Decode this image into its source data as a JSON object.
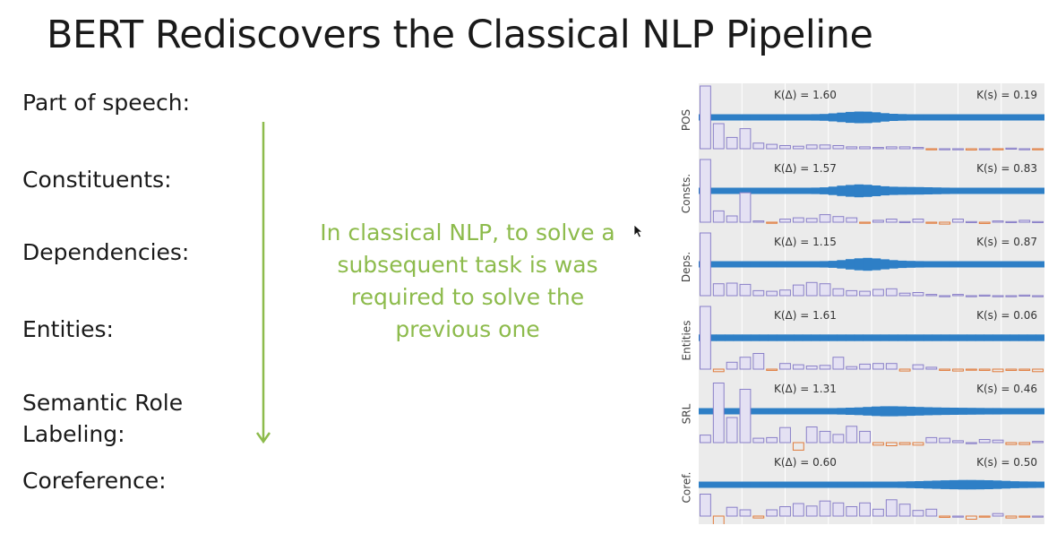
{
  "title": "BERT Rediscovers the Classical NLP Pipeline",
  "tasks": [
    "Part of speech:",
    "Constituents:",
    "Dependencies:",
    "Entities:",
    "Semantic Role\nLabeling:",
    "Coreference:"
  ],
  "note": "In classical NLP, to solve a subsequent task is was required to solve the previous one",
  "colors": {
    "arrow": "#8dbb4c",
    "note_text": "#8dbb4c",
    "band": "#2e7fc6",
    "bar_positive_fill": "#e4e1f3",
    "bar_positive_stroke": "#8a80c8",
    "bar_negative_stroke": "#e07a3a",
    "panel_background": "#ebebeb"
  },
  "icons": [
    "down-arrow-icon",
    "mouse-cursor-icon"
  ],
  "panels": [
    {
      "label": "POS",
      "k_delta": "K(Δ) = 1.60",
      "k_s": "K(s) = 0.19",
      "band": [
        0.5,
        0.5,
        0.5,
        0.5,
        0.5,
        0.5,
        0.5,
        0.5,
        0.5,
        0.5,
        0.5,
        0.5,
        0.5,
        0.6,
        0.8,
        1.5,
        2.3,
        3.1,
        3.5,
        3.4,
        2.7,
        1.7,
        1.0,
        0.7,
        0.5,
        0.5,
        0.5,
        0.5,
        0.5,
        0.5,
        0.5,
        0.5,
        0.5,
        0.5,
        0.5,
        0.5,
        0.5,
        0.5,
        0.5,
        0.5
      ],
      "bars": [
        100,
        40,
        18,
        32,
        9,
        7,
        5,
        4,
        6,
        6,
        5,
        3,
        3,
        2,
        3,
        3,
        2,
        -1,
        0,
        0,
        -2,
        0,
        -1,
        1,
        0,
        -1
      ]
    },
    {
      "label": "Consts.",
      "k_delta": "K(Δ) = 1.57",
      "k_s": "K(s) = 0.83",
      "band": [
        0.5,
        0.5,
        0.5,
        0.5,
        0.5,
        0.5,
        0.5,
        0.5,
        0.5,
        0.5,
        0.5,
        0.5,
        0.5,
        0.6,
        0.9,
        1.7,
        2.8,
        3.6,
        4.2,
        3.8,
        3.0,
        2.1,
        1.6,
        1.4,
        1.3,
        1.2,
        1.0,
        0.8,
        0.6,
        0.5,
        0.5,
        0.5,
        0.5,
        0.5,
        0.5,
        0.5,
        0.5,
        0.5,
        0.5,
        0.5
      ],
      "bars": [
        100,
        18,
        10,
        47,
        2,
        -1,
        5,
        7,
        6,
        12,
        9,
        7,
        -1,
        3,
        5,
        1,
        5,
        -1,
        -3,
        5,
        1,
        -2,
        2,
        1,
        3,
        1
      ]
    },
    {
      "label": "Deps.",
      "k_delta": "K(Δ) = 1.15",
      "k_s": "K(s) = 0.87",
      "band": [
        0.5,
        0.5,
        0.5,
        0.5,
        0.5,
        0.5,
        0.5,
        0.5,
        0.5,
        0.5,
        0.5,
        0.5,
        0.5,
        0.5,
        0.6,
        0.9,
        1.7,
        2.8,
        3.7,
        4.2,
        3.6,
        2.6,
        1.7,
        1.1,
        0.8,
        0.6,
        0.5,
        0.5,
        0.5,
        0.5,
        0.5,
        0.5,
        0.5,
        0.5,
        0.5,
        0.5,
        0.5,
        0.5,
        0.5,
        0.5
      ],
      "bars": [
        100,
        19,
        20,
        18,
        8,
        7,
        9,
        17,
        21,
        19,
        11,
        8,
        7,
        10,
        11,
        4,
        5,
        2,
        0,
        2,
        0,
        1,
        0,
        0,
        1,
        0
      ]
    },
    {
      "label": "Entities",
      "k_delta": "K(Δ) = 1.61",
      "k_s": "K(s) = 0.06",
      "band": [
        0.7,
        0.7,
        0.7,
        0.7,
        0.7,
        0.7,
        0.7,
        0.7,
        0.7,
        0.7,
        0.7,
        0.7,
        0.7,
        0.7,
        0.7,
        0.7,
        0.7,
        0.7,
        0.7,
        0.7,
        0.7,
        0.7,
        0.7,
        0.7,
        0.7,
        0.7,
        0.7,
        0.7,
        0.7,
        0.7,
        0.7,
        0.7,
        0.7,
        0.7,
        0.7,
        0.7,
        0.7,
        0.7,
        0.7,
        0.7
      ],
      "bars": [
        100,
        -4,
        11,
        19,
        25,
        -2,
        9,
        7,
        5,
        6,
        19,
        4,
        8,
        9,
        9,
        -3,
        7,
        3,
        -2,
        -3,
        -1,
        -2,
        -4,
        -2,
        -2,
        -4
      ]
    },
    {
      "label": "SRL",
      "k_delta": "K(Δ) = 1.31",
      "k_s": "K(s) = 0.46",
      "band": [
        0.5,
        0.5,
        0.5,
        0.5,
        0.5,
        0.5,
        0.5,
        0.5,
        0.5,
        0.5,
        0.5,
        0.5,
        0.5,
        0.5,
        0.5,
        0.5,
        0.7,
        1.0,
        1.3,
        1.8,
        2.3,
        2.6,
        2.6,
        2.4,
        2.1,
        1.8,
        1.5,
        1.3,
        1.1,
        1.0,
        0.9,
        0.8,
        0.7,
        0.6,
        0.6,
        0.5,
        0.5,
        0.5,
        0.5,
        0.5
      ],
      "bars": [
        12,
        95,
        40,
        85,
        7,
        8,
        24,
        -12,
        25,
        18,
        13,
        26,
        18,
        -4,
        -5,
        -3,
        -4,
        8,
        7,
        3,
        0,
        5,
        4,
        -3,
        -3,
        2
      ]
    },
    {
      "label": "Coref.",
      "k_delta": "K(Δ) = 0.60",
      "k_s": "K(s) = 0.50",
      "band": [
        0.5,
        0.5,
        0.5,
        0.5,
        0.5,
        0.5,
        0.5,
        0.5,
        0.5,
        0.5,
        0.5,
        0.5,
        0.5,
        0.5,
        0.5,
        0.5,
        0.5,
        0.5,
        0.5,
        0.5,
        0.5,
        0.5,
        0.5,
        0.6,
        0.8,
        1.0,
        1.3,
        1.6,
        1.9,
        2.1,
        2.3,
        2.3,
        2.2,
        2.0,
        1.7,
        1.3,
        0.9,
        0.7,
        0.6,
        0.5
      ],
      "bars": [
        35,
        -45,
        14,
        10,
        -3,
        10,
        15,
        20,
        16,
        24,
        21,
        15,
        21,
        11,
        26,
        19,
        9,
        11,
        -2,
        0,
        -5,
        -1,
        4,
        -3,
        -1,
        0
      ]
    }
  ]
}
